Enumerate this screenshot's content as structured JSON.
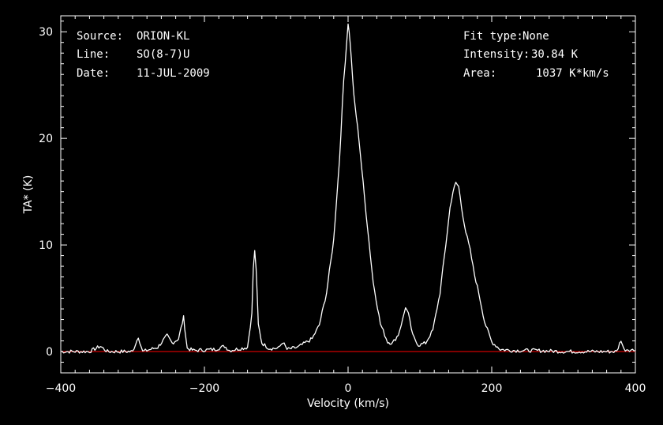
{
  "info": {
    "source_label": "Source:",
    "source_value": "ORION-KL",
    "line_label": "Line:",
    "line_value": "SO(8-7)U",
    "date_label": "Date:",
    "date_value": "11-JUL-2009",
    "fit_label": "Fit type:",
    "fit_value": "None",
    "intensity_label": "Intensity:",
    "intensity_value": "30.84 K",
    "area_label": "Area:",
    "area_value": "1037 K*km/s"
  },
  "chart_data": {
    "type": "line",
    "title": "",
    "xlabel": "Velocity (km/s)",
    "ylabel": "TA* (K)",
    "xlim": [
      -400,
      400
    ],
    "ylim": [
      -2,
      31.5
    ],
    "xticks": [
      -400,
      -200,
      0,
      200,
      400
    ],
    "yticks": [
      0,
      10,
      20,
      30
    ],
    "grid": false,
    "baseline": {
      "y": 0,
      "color": "#cc0000"
    },
    "series": [
      {
        "color": "#ffffff",
        "x": [
          -400,
          -360,
          -345,
          -335,
          -300,
          -292,
          -286,
          -265,
          -252,
          -245,
          -236,
          -229,
          -224,
          -215,
          -185,
          -172,
          -165,
          -140,
          -134,
          -132,
          -130,
          -128,
          -125,
          -120,
          -110,
          -97,
          -91,
          -85,
          -70,
          -50,
          -40,
          -30,
          -20,
          -12,
          -6,
          -2,
          0,
          3,
          8,
          15,
          25,
          35,
          45,
          55,
          62,
          70,
          76,
          80,
          84,
          90,
          98,
          108,
          118,
          128,
          136,
          142,
          146,
          150,
          154,
          158,
          164,
          170,
          176,
          182,
          190,
          200,
          212,
          230,
          260,
          300,
          350,
          374,
          380,
          384,
          390,
          400
        ],
        "y": [
          0,
          0,
          0.5,
          0,
          0,
          1.4,
          0,
          0.4,
          1.5,
          0.8,
          1.2,
          3.2,
          0.3,
          0.1,
          0.2,
          0.5,
          0.1,
          0.4,
          3.5,
          7.8,
          9.4,
          7.8,
          2.5,
          0.8,
          0.3,
          0.3,
          0.9,
          0.2,
          0.4,
          1.2,
          2.5,
          5.5,
          10.5,
          18,
          25.5,
          29,
          30.84,
          29,
          24,
          20,
          13,
          6.5,
          2.6,
          0.9,
          0.8,
          1.6,
          3,
          4.2,
          3.5,
          1.5,
          0.6,
          0.8,
          2,
          5.5,
          10,
          13.5,
          15,
          15.8,
          15.5,
          13.5,
          11.2,
          9.5,
          7.2,
          5.5,
          2.8,
          0.9,
          0.2,
          0.1,
          0.1,
          0,
          0,
          0,
          1.1,
          0.2,
          0.2,
          0.1
        ]
      }
    ]
  }
}
